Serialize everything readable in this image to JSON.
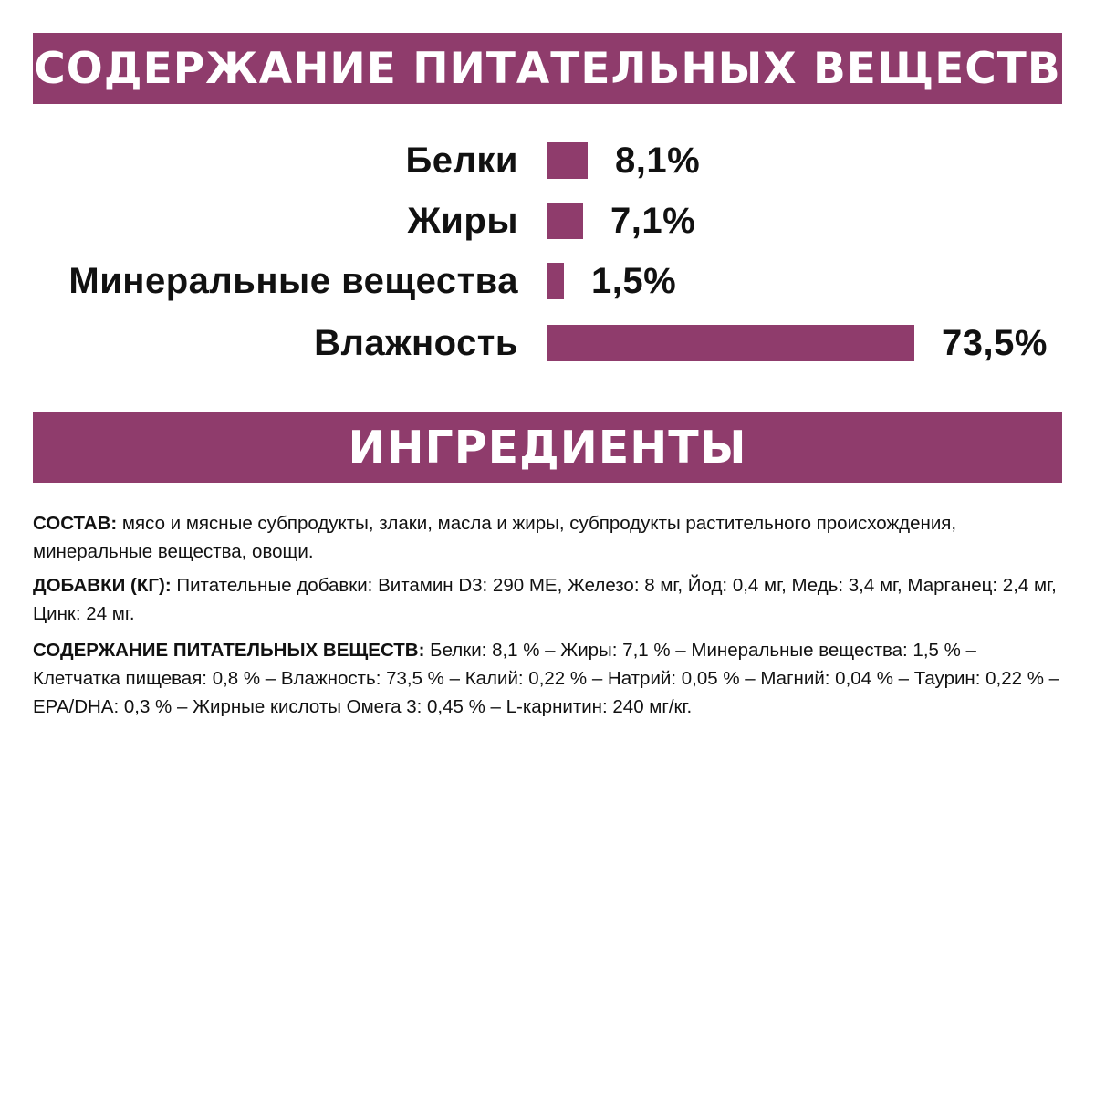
{
  "colors": {
    "accent": "#8f3c6c",
    "text": "#111111",
    "background": "#ffffff"
  },
  "banners": {
    "nutrients": "СОДЕРЖАНИЕ ПИТАТЕЛЬНЫХ ВЕЩЕСТВ",
    "ingredients": "ИНГРЕДИЕНТЫ"
  },
  "chart_data": {
    "type": "bar",
    "orientation": "horizontal",
    "categories": [
      "Белки",
      "Жиры",
      "Минеральные вещества",
      "Влажность"
    ],
    "values": [
      8.1,
      7.1,
      1.5,
      73.5
    ],
    "value_labels": [
      "8,1%",
      "7,1%",
      "1,5%",
      "73,5%"
    ],
    "unit": "%",
    "title": "",
    "xlabel": "",
    "ylabel": "",
    "xlim": [
      0,
      73.5
    ],
    "grid": false,
    "legend": "none",
    "bar_color": "#8f3c6c"
  },
  "ingredients": [
    {
      "label": "СОСТАВ:",
      "text": " мясо и мясные субпродукты, злаки, масла и жиры, субпродукты растительного происхождения, минеральные вещества, овощи."
    },
    {
      "label": "ДОБАВКИ (КГ):",
      "text": " Питательные добавки: Витамин D3: 290 МЕ, Железо: 8 мг, Йод: 0,4 мг, Медь: 3,4 мг, Марганец: 2,4 мг, Цинк: 24 мг."
    },
    {
      "label": "СОДЕРЖАНИЕ ПИТАТЕЛЬНЫХ ВЕЩЕСТВ:",
      "text": " Белки: 8,1 % – Жиры: 7,1 % – Минеральные вещества: 1,5 % – Клетчатка пищевая: 0,8 % – Влажность: 73,5 % – Калий: 0,22 % – Натрий: 0,05 % – Магний: 0,04 % – Таурин: 0,22 % – EPA/DHA: 0,3 % – Жирные кислоты Омега 3: 0,45 % – L-карнитин: 240 мг/кг."
    }
  ]
}
